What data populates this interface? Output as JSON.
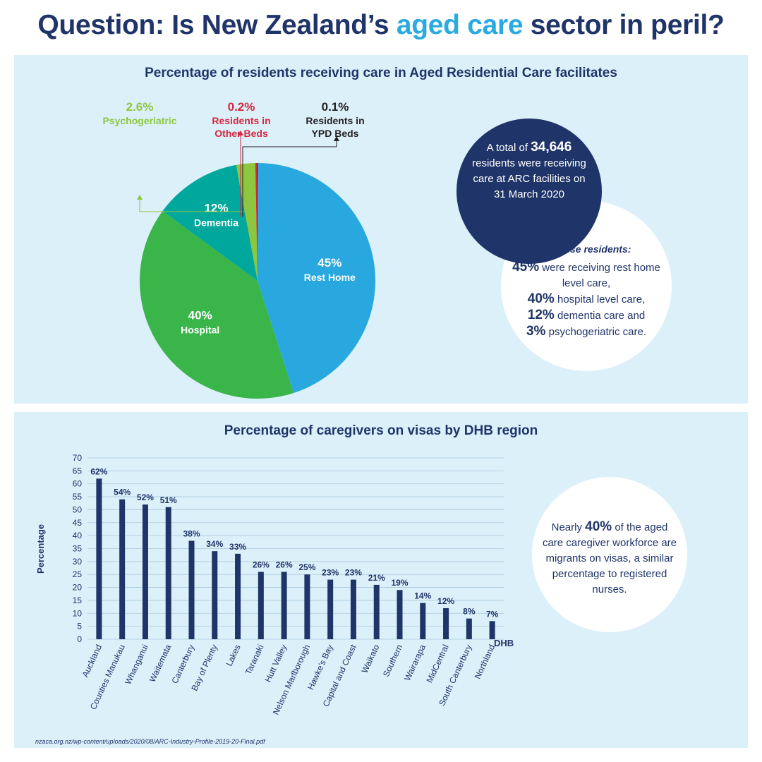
{
  "title": {
    "prefix": "Question: Is New Zealand’s ",
    "highlight": "aged care",
    "suffix": " sector in peril?"
  },
  "colors": {
    "navy": "#1f3468",
    "title_accent": "#29abe2",
    "panel_bg": "#dcf0fa",
    "rest_home": "#29a8e0",
    "hospital": "#39b54a",
    "dementia": "#00a79d",
    "psychogeriatric": "#8dc63f",
    "other_beds": "#d7263d",
    "ypd_beds": "#231f20",
    "bars": "#1f3468"
  },
  "chart_data": [
    {
      "type": "pie",
      "title": "Percentage of residents receiving care in Aged Residential Care facilitates",
      "slices": [
        {
          "label": "Rest Home",
          "value": 45,
          "display": "45%",
          "color_key": "rest_home"
        },
        {
          "label": "Hospital",
          "value": 40,
          "display": "40%",
          "color_key": "hospital"
        },
        {
          "label": "Dementia",
          "value": 12,
          "display": "12%",
          "color_key": "dementia"
        },
        {
          "label": "Psychogeriatric",
          "value": 2.6,
          "display": "2.6%",
          "color_key": "psychogeriatric"
        },
        {
          "label": "Residents in Other Beds",
          "value": 0.2,
          "display": "0.2%",
          "color_key": "other_beds"
        },
        {
          "label": "Residents in YPD Beds",
          "value": 0.1,
          "display": "0.1%",
          "color_key": "ypd_beds"
        }
      ]
    },
    {
      "type": "bar",
      "title": "Percentage of caregivers on visas by DHB region",
      "xlabel": "DHB",
      "ylabel": "Percentage",
      "ylim": [
        0,
        70
      ],
      "yticks": [
        0,
        5,
        10,
        15,
        20,
        25,
        30,
        35,
        40,
        45,
        50,
        55,
        60,
        65,
        70
      ],
      "grid": true,
      "categories": [
        "Auckland",
        "Counties Manukau",
        "Whanganui",
        "Waitemata",
        "Canterbury",
        "Bay of Plenty",
        "Lakes",
        "Taranaki",
        "Hutt Valley",
        "Nelson Marlborough",
        "Hawke’s Bay",
        "Capital and Coast",
        "Waikato",
        "Southern",
        "Wairarapa",
        "MidCentral",
        "South Canterbury",
        "Northland"
      ],
      "values": [
        62,
        54,
        52,
        51,
        38,
        34,
        33,
        26,
        26,
        25,
        23,
        23,
        21,
        19,
        14,
        12,
        8,
        7
      ],
      "labels": [
        "62%",
        "54%",
        "52%",
        "51%",
        "38%",
        "34%",
        "33%",
        "26%",
        "26%",
        "25%",
        "23%",
        "23%",
        "21%",
        "19%",
        "14%",
        "12%",
        "8%",
        "7%"
      ]
    }
  ],
  "pie_callouts": {
    "psychogeriatric": {
      "value": "2.6%",
      "line1": "Psychogeriatric"
    },
    "other_beds": {
      "value": "0.2%",
      "line1": "Residents in",
      "line2": "Other Beds"
    },
    "ypd_beds": {
      "value": "0.1%",
      "line1": "Residents in",
      "line2": "YPD Beds"
    }
  },
  "total_circle": {
    "prefix": "A total of ",
    "number": "34,646",
    "rest": "residents were receiving care at ARC facilities on 31 March 2020"
  },
  "residents_circle": {
    "heading": "Of these residents:",
    "lines": [
      {
        "pct": "45%",
        "text": " were receiving rest home level care,"
      },
      {
        "pct": "40%",
        "text": " hospital level care,"
      },
      {
        "pct": "12%",
        "text": " dementia care and"
      },
      {
        "pct": "3%",
        "text": " psychogeriatric care."
      }
    ]
  },
  "visa_circle": {
    "prefix": "Nearly ",
    "pct": "40%",
    "suffix": " of the aged care caregiver workforce are migrants on visas, a similar percentage to registered nurses."
  },
  "source": "nzaca.org.nz/wp-content/uploads/2020/08/ARC-Industry-Profile-2019-20-Final.pdf"
}
